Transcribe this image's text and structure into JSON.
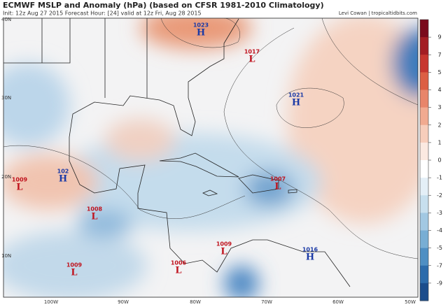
{
  "header": {
    "title": "ECMWF MSLP and Anomaly (hPa) (based on CFSR 1981-2010 Climatology)",
    "subtitle": "Init: 12z Aug 27 2015   Forecast Hour: [24]   valid at 12z Fri, Aug 28 2015",
    "credit": "Levi Cowan | tropicaltidbits.com"
  },
  "latitude_labels": [
    "40N",
    "30N",
    "20N",
    "10N"
  ],
  "longitude_labels": [
    "100W",
    "90W",
    "80W",
    "70W",
    "60W",
    "50W"
  ],
  "pressure_centers": [
    {
      "symbol": "H",
      "pressure": "1023"
    },
    {
      "symbol": "L",
      "pressure": "1017"
    },
    {
      "symbol": "H",
      "pressure": "1021"
    },
    {
      "symbol": "H",
      "pressure": "102"
    },
    {
      "symbol": "L",
      "pressure": "1009"
    },
    {
      "symbol": "L",
      "pressure": "1008"
    },
    {
      "symbol": "L",
      "pressure": "1007"
    },
    {
      "symbol": "L",
      "pressure": "1009"
    },
    {
      "symbol": "L",
      "pressure": "1009"
    },
    {
      "symbol": "L",
      "pressure": "1006"
    },
    {
      "symbol": "H",
      "pressure": "1016"
    }
  ],
  "colorbar": {
    "ticks": [
      9,
      7,
      5,
      4,
      3,
      2,
      1,
      0,
      -1,
      -2,
      -3,
      -4,
      -5,
      -7,
      -9
    ]
  }
}
